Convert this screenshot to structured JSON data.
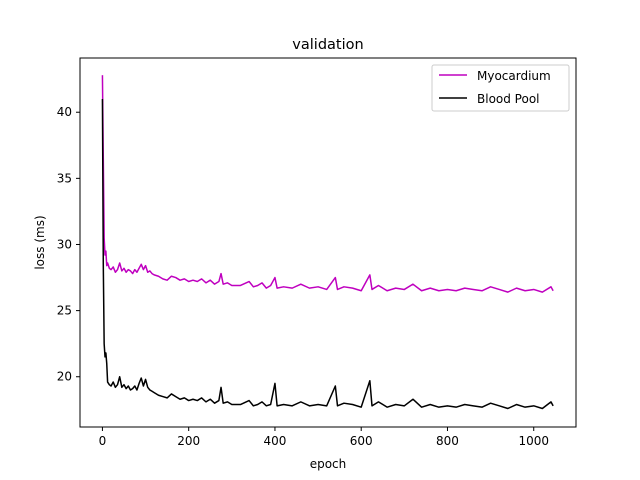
{
  "chart_data": {
    "type": "line",
    "title": "validation",
    "xlabel": "epoch",
    "ylabel": "loss (ms)",
    "xlim": [
      -52,
      1098
    ],
    "ylim": [
      16.2,
      44.1
    ],
    "xticks": [
      0,
      200,
      400,
      600,
      800,
      1000
    ],
    "yticks": [
      20,
      25,
      30,
      35,
      40
    ],
    "legend_position": "top-right",
    "grid": false,
    "series": [
      {
        "name": "Myocardium",
        "color": "#bf00bf",
        "points": [
          [
            0,
            42.8
          ],
          [
            2,
            36.5
          ],
          [
            4,
            30.5
          ],
          [
            6,
            29.2
          ],
          [
            8,
            29.5
          ],
          [
            10,
            28.4
          ],
          [
            12,
            28.6
          ],
          [
            16,
            28.2
          ],
          [
            20,
            28.1
          ],
          [
            25,
            28.3
          ],
          [
            30,
            27.9
          ],
          [
            35,
            28.1
          ],
          [
            40,
            28.6
          ],
          [
            45,
            28.0
          ],
          [
            50,
            28.2
          ],
          [
            55,
            27.9
          ],
          [
            60,
            28.1
          ],
          [
            65,
            28.0
          ],
          [
            70,
            27.8
          ],
          [
            75,
            28.1
          ],
          [
            80,
            27.9
          ],
          [
            85,
            28.2
          ],
          [
            90,
            28.5
          ],
          [
            95,
            28.1
          ],
          [
            100,
            28.4
          ],
          [
            105,
            27.9
          ],
          [
            110,
            28.0
          ],
          [
            115,
            27.8
          ],
          [
            120,
            27.7
          ],
          [
            130,
            27.6
          ],
          [
            140,
            27.4
          ],
          [
            150,
            27.3
          ],
          [
            160,
            27.6
          ],
          [
            170,
            27.5
          ],
          [
            180,
            27.3
          ],
          [
            190,
            27.4
          ],
          [
            200,
            27.2
          ],
          [
            210,
            27.3
          ],
          [
            220,
            27.2
          ],
          [
            230,
            27.4
          ],
          [
            240,
            27.1
          ],
          [
            250,
            27.3
          ],
          [
            260,
            27.0
          ],
          [
            270,
            27.2
          ],
          [
            275,
            27.8
          ],
          [
            280,
            27.0
          ],
          [
            290,
            27.1
          ],
          [
            300,
            26.9
          ],
          [
            320,
            26.9
          ],
          [
            340,
            27.2
          ],
          [
            350,
            26.8
          ],
          [
            360,
            26.9
          ],
          [
            370,
            27.1
          ],
          [
            380,
            26.7
          ],
          [
            390,
            26.9
          ],
          [
            400,
            27.5
          ],
          [
            405,
            26.7
          ],
          [
            420,
            26.8
          ],
          [
            440,
            26.7
          ],
          [
            460,
            27.0
          ],
          [
            480,
            26.7
          ],
          [
            500,
            26.8
          ],
          [
            520,
            26.6
          ],
          [
            540,
            27.5
          ],
          [
            545,
            26.6
          ],
          [
            560,
            26.8
          ],
          [
            580,
            26.7
          ],
          [
            600,
            26.5
          ],
          [
            620,
            27.7
          ],
          [
            625,
            26.6
          ],
          [
            640,
            26.9
          ],
          [
            660,
            26.5
          ],
          [
            680,
            26.7
          ],
          [
            700,
            26.6
          ],
          [
            720,
            27.0
          ],
          [
            740,
            26.5
          ],
          [
            760,
            26.7
          ],
          [
            780,
            26.5
          ],
          [
            800,
            26.6
          ],
          [
            820,
            26.5
          ],
          [
            840,
            26.7
          ],
          [
            860,
            26.6
          ],
          [
            880,
            26.5
          ],
          [
            900,
            26.8
          ],
          [
            920,
            26.6
          ],
          [
            940,
            26.4
          ],
          [
            960,
            26.7
          ],
          [
            980,
            26.5
          ],
          [
            1000,
            26.6
          ],
          [
            1020,
            26.4
          ],
          [
            1040,
            26.8
          ],
          [
            1045,
            26.5
          ]
        ]
      },
      {
        "name": "Blood Pool",
        "color": "#000000",
        "points": [
          [
            0,
            41.0
          ],
          [
            2,
            28.5
          ],
          [
            4,
            22.5
          ],
          [
            6,
            21.5
          ],
          [
            8,
            21.8
          ],
          [
            10,
            21.0
          ],
          [
            12,
            19.6
          ],
          [
            16,
            19.4
          ],
          [
            20,
            19.3
          ],
          [
            25,
            19.6
          ],
          [
            30,
            19.2
          ],
          [
            35,
            19.4
          ],
          [
            40,
            20.0
          ],
          [
            45,
            19.2
          ],
          [
            50,
            19.4
          ],
          [
            55,
            19.1
          ],
          [
            60,
            19.3
          ],
          [
            65,
            19.0
          ],
          [
            70,
            19.1
          ],
          [
            75,
            19.3
          ],
          [
            80,
            19.0
          ],
          [
            85,
            19.5
          ],
          [
            90,
            19.9
          ],
          [
            95,
            19.3
          ],
          [
            100,
            19.8
          ],
          [
            105,
            19.2
          ],
          [
            110,
            19.0
          ],
          [
            115,
            18.9
          ],
          [
            120,
            18.8
          ],
          [
            130,
            18.6
          ],
          [
            140,
            18.5
          ],
          [
            150,
            18.4
          ],
          [
            160,
            18.7
          ],
          [
            170,
            18.5
          ],
          [
            180,
            18.3
          ],
          [
            190,
            18.4
          ],
          [
            200,
            18.2
          ],
          [
            210,
            18.3
          ],
          [
            220,
            18.2
          ],
          [
            230,
            18.4
          ],
          [
            240,
            18.1
          ],
          [
            250,
            18.3
          ],
          [
            260,
            18.0
          ],
          [
            270,
            18.2
          ],
          [
            275,
            19.2
          ],
          [
            280,
            18.0
          ],
          [
            290,
            18.1
          ],
          [
            300,
            17.9
          ],
          [
            320,
            17.9
          ],
          [
            340,
            18.2
          ],
          [
            350,
            17.8
          ],
          [
            360,
            17.9
          ],
          [
            370,
            18.1
          ],
          [
            380,
            17.8
          ],
          [
            390,
            17.9
          ],
          [
            400,
            19.5
          ],
          [
            405,
            17.8
          ],
          [
            420,
            17.9
          ],
          [
            440,
            17.8
          ],
          [
            460,
            18.1
          ],
          [
            480,
            17.8
          ],
          [
            500,
            17.9
          ],
          [
            520,
            17.8
          ],
          [
            540,
            19.3
          ],
          [
            545,
            17.8
          ],
          [
            560,
            18.0
          ],
          [
            580,
            17.9
          ],
          [
            600,
            17.7
          ],
          [
            620,
            19.7
          ],
          [
            625,
            17.8
          ],
          [
            640,
            18.1
          ],
          [
            660,
            17.7
          ],
          [
            680,
            17.9
          ],
          [
            700,
            17.8
          ],
          [
            720,
            18.3
          ],
          [
            740,
            17.7
          ],
          [
            760,
            17.9
          ],
          [
            780,
            17.7
          ],
          [
            800,
            17.8
          ],
          [
            820,
            17.7
          ],
          [
            840,
            17.9
          ],
          [
            860,
            17.8
          ],
          [
            880,
            17.7
          ],
          [
            900,
            18.0
          ],
          [
            920,
            17.8
          ],
          [
            940,
            17.6
          ],
          [
            960,
            17.9
          ],
          [
            980,
            17.7
          ],
          [
            1000,
            17.8
          ],
          [
            1020,
            17.6
          ],
          [
            1040,
            18.1
          ],
          [
            1045,
            17.8
          ]
        ]
      }
    ]
  }
}
